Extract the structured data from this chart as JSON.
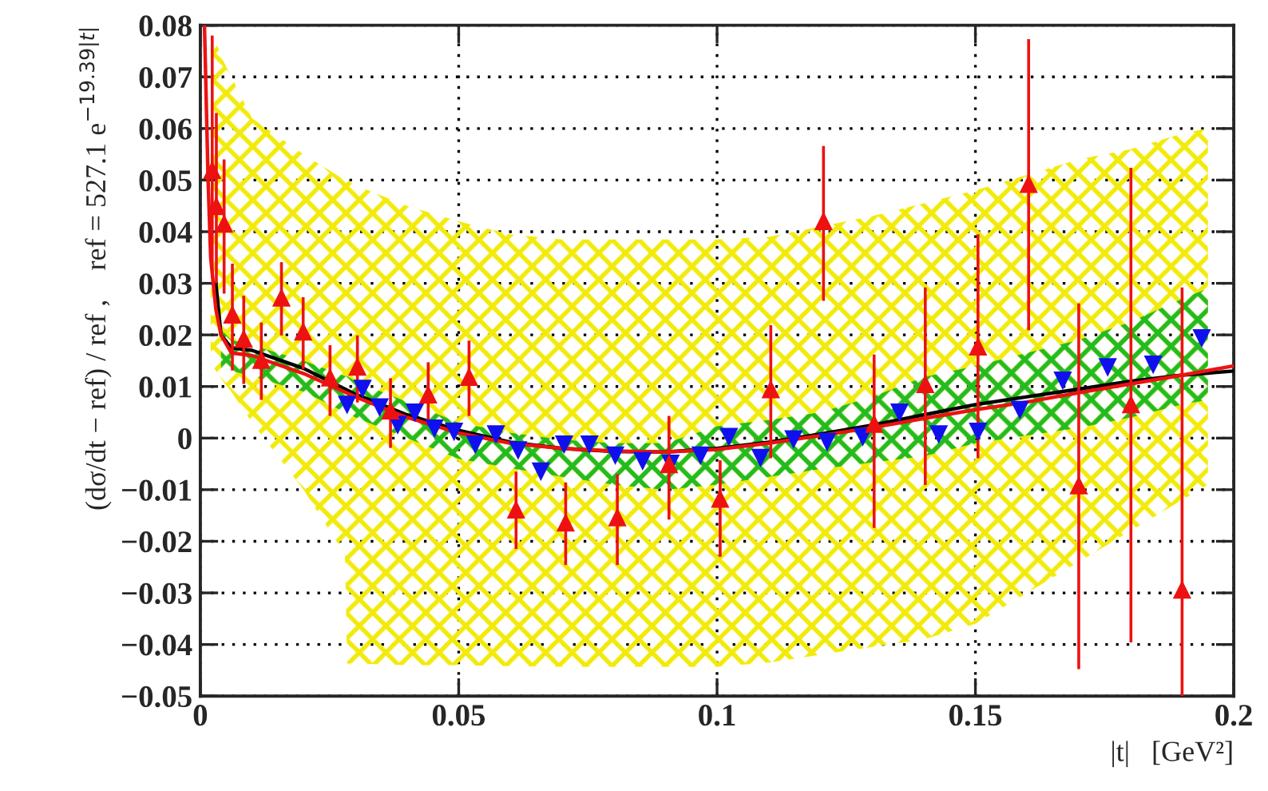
{
  "chart_data": {
    "type": "scatter",
    "xlabel": "|t|   [GeV²]",
    "ylabel": "(dσ/dt − ref) / ref ,    ref = 527.1 e$^{−19.39|t|}$",
    "xlim": [
      0,
      0.2
    ],
    "ylim": [
      -0.05,
      0.08
    ],
    "xticks": [
      0,
      0.05,
      0.1,
      0.15,
      0.2
    ],
    "yticks": [
      {
        "value": -0.05,
        "label": "−0.05"
      },
      {
        "value": -0.04,
        "label": "−0.04"
      },
      {
        "value": -0.03,
        "label": "−0.03"
      },
      {
        "value": -0.02,
        "label": "−0.02"
      },
      {
        "value": -0.01,
        "label": "−0.01"
      },
      0,
      0.01,
      0.02,
      0.03,
      0.04,
      0.05,
      0.06,
      0.07,
      0.08
    ],
    "grid": true,
    "legend": false,
    "series": [
      {
        "type": "line",
        "color": "#f2ea0a",
        "x": [
          0.002,
          0.003,
          0.004,
          0.006,
          0.01,
          0.02,
          0.028,
          0.0284,
          0.03,
          0.04,
          0.05,
          0.06,
          0.07,
          0.08,
          0.09,
          0.1,
          0.11,
          0.12,
          0.13,
          0.14,
          0.15,
          0.16,
          0.17,
          0.18,
          0.19,
          0.195
        ],
        "values": [
          null,
          null,
          null,
          null,
          null,
          null,
          null,
          null,
          null,
          null,
          null,
          null,
          null,
          null,
          null,
          null,
          null,
          null,
          null,
          null,
          null,
          null,
          null,
          null,
          null,
          null
        ],
        "lower": [
          0.0147,
          0.013,
          0.0115,
          0.009,
          0.003,
          -0.01,
          -0.0226,
          -0.0437,
          -0.0437,
          -0.044,
          -0.044,
          -0.0442,
          -0.0443,
          -0.0443,
          -0.0443,
          -0.0443,
          -0.0435,
          -0.042,
          -0.0405,
          -0.039,
          -0.036,
          -0.03,
          -0.024,
          -0.018,
          -0.012,
          -0.009
        ],
        "upper": [
          0.079,
          0.077,
          0.074,
          0.07,
          0.062,
          0.055,
          0.05,
          0.05,
          0.049,
          0.045,
          0.042,
          0.0395,
          0.0385,
          0.0385,
          0.0385,
          0.0385,
          0.039,
          0.041,
          0.043,
          0.0455,
          0.048,
          0.051,
          0.054,
          0.056,
          0.059,
          0.06
        ]
      },
      {
        "type": "line",
        "color": "#22bb22",
        "x": [
          0.004,
          0.006,
          0.01,
          0.02,
          0.028,
          0.0284,
          0.03,
          0.04,
          0.05,
          0.06,
          0.07,
          0.08,
          0.09,
          0.1,
          0.11,
          0.12,
          0.13,
          0.14,
          0.15,
          0.16,
          0.17,
          0.18,
          0.19,
          0.195
        ],
        "values": [
          null,
          null,
          null,
          null,
          null,
          null,
          null,
          null,
          null,
          null,
          null,
          null,
          null,
          null,
          null,
          null,
          null,
          null,
          null,
          null,
          null,
          null,
          null,
          null
        ],
        "lower": [
          0.013,
          0.013,
          0.012,
          0.009,
          0.005,
          0.005,
          0.004,
          0.0,
          -0.004,
          -0.0058,
          -0.0075,
          -0.009,
          -0.01,
          -0.009,
          -0.0075,
          -0.006,
          -0.0047,
          -0.0035,
          -0.001,
          0.0005,
          0.002,
          0.004,
          0.0065,
          0.0074
        ],
        "upper": [
          0.021,
          0.019,
          0.018,
          0.015,
          0.012,
          0.012,
          0.011,
          0.007,
          0.003,
          0.001,
          -0.0003,
          -0.001,
          -0.001,
          0.0023,
          0.0035,
          0.005,
          0.008,
          0.0118,
          0.014,
          0.0165,
          0.019,
          0.0225,
          0.027,
          0.029
        ]
      },
      {
        "type": "line",
        "color": "#000000",
        "marker": "none",
        "x": [
          0.003,
          0.004,
          0.006,
          0.01,
          0.02,
          0.028,
          0.03,
          0.04,
          0.05,
          0.06,
          0.07,
          0.08,
          0.09,
          0.1,
          0.11,
          0.12,
          0.13,
          0.14,
          0.15,
          0.16,
          0.17,
          0.18,
          0.19,
          0.195,
          0.2
        ],
        "values": [
          0.03,
          0.02,
          0.0175,
          0.017,
          0.0135,
          0.0095,
          0.0085,
          0.0045,
          0.0015,
          -0.0008,
          -0.002,
          -0.0026,
          -0.0027,
          -0.002,
          -0.0008,
          0.0008,
          0.0025,
          0.0045,
          0.0065,
          0.008,
          0.0095,
          0.011,
          0.0122,
          0.0126,
          0.013
        ]
      },
      {
        "type": "line",
        "color": "#ee1111",
        "marker": "none",
        "x": [
          0.0008,
          0.0015,
          0.002,
          0.003,
          0.004,
          0.006,
          0.01,
          0.02,
          0.028,
          0.03,
          0.04,
          0.05,
          0.06,
          0.07,
          0.08,
          0.09,
          0.1,
          0.11,
          0.12,
          0.13,
          0.14,
          0.15,
          0.16,
          0.17,
          0.18,
          0.19,
          0.195,
          0.2
        ],
        "values": [
          0.08,
          0.05,
          0.035,
          0.025,
          0.02,
          0.0165,
          0.016,
          0.0125,
          0.0089,
          0.008,
          0.004,
          0.001,
          -0.001,
          -0.002,
          -0.0025,
          -0.0027,
          -0.0022,
          -0.001,
          0.0005,
          0.002,
          0.0038,
          0.0055,
          0.007,
          0.0088,
          0.0105,
          0.0122,
          0.0131,
          0.014
        ]
      },
      {
        "color": "#1010ee",
        "marker": "triangle_down",
        "x": [
          0.0284,
          0.0314,
          0.0347,
          0.0382,
          0.0415,
          0.0453,
          0.0491,
          0.0532,
          0.0572,
          0.0615,
          0.0659,
          0.0704,
          0.0753,
          0.0803,
          0.0856,
          0.091,
          0.0968,
          0.1023,
          0.1084,
          0.1148,
          0.1213,
          0.1282,
          0.1353,
          0.1429,
          0.1505,
          0.1586,
          0.1669,
          0.1756,
          0.1844,
          0.1938
        ],
        "values": [
          0.0064,
          0.0095,
          0.0059,
          0.0025,
          0.0049,
          0.0018,
          0.0012,
          -0.0013,
          0.0007,
          -0.0024,
          -0.0065,
          -0.0013,
          -0.0013,
          -0.0034,
          -0.0045,
          -0.005,
          -0.0034,
          0.0002,
          -0.0039,
          -0.0003,
          -0.0008,
          0.0002,
          0.0049,
          0.0007,
          0.0012,
          0.0054,
          0.0111,
          0.0137,
          0.0142,
          0.0193
        ]
      },
      {
        "color": "#ee1111",
        "marker": "triangle",
        "x": [
          0.0023,
          0.0031,
          0.0046,
          0.0062,
          0.0084,
          0.0118,
          0.0157,
          0.0199,
          0.0251,
          0.0304,
          0.0368,
          0.0441,
          0.052,
          0.0611,
          0.0707,
          0.0807,
          0.0907,
          0.1006,
          0.1104,
          0.1206,
          0.1304,
          0.1403,
          0.1505,
          0.1603,
          0.17,
          0.1801,
          0.19
        ],
        "values": [
          0.052,
          0.045,
          0.0416,
          0.024,
          0.0193,
          0.0152,
          0.0273,
          0.0207,
          0.0118,
          0.0139,
          0.0054,
          0.0085,
          0.0119,
          -0.0138,
          -0.0163,
          -0.0153,
          -0.005,
          -0.0117,
          0.0095,
          0.0421,
          0.0028,
          0.0105,
          0.0178,
          0.0493,
          -0.0091,
          0.0066,
          -0.0293
        ],
        "errors": [
          [
            0.031,
            0.078
          ],
          [
            0.03,
            0.063
          ],
          [
            0.028,
            0.054
          ],
          [
            0.0131,
            0.0338
          ],
          [
            0.0105,
            0.0276
          ],
          [
            0.0074,
            0.0224
          ],
          [
            0.0199,
            0.0341
          ],
          [
            0.0134,
            0.0273
          ],
          [
            0.0043,
            0.018
          ],
          [
            0.0069,
            0.0199
          ],
          [
            -0.0019,
            0.0116
          ],
          [
            0.0023,
            0.0147
          ],
          [
            0.0043,
            0.0189
          ],
          [
            -0.0215,
            -0.0065
          ],
          [
            -0.0246,
            -0.0086
          ],
          [
            -0.0246,
            -0.007
          ],
          [
            -0.0158,
            0.0043
          ],
          [
            -0.023,
            -0.0043
          ],
          [
            -0.0039,
            0.0219
          ],
          [
            0.0266,
            0.0566
          ],
          [
            -0.0174,
            0.0162
          ],
          [
            -0.0091,
            0.0292
          ],
          [
            -0.0039,
            0.0395
          ],
          [
            0.0209,
            0.0773
          ],
          [
            -0.0448,
            0.0261
          ],
          [
            -0.0396,
            0.0524
          ],
          [
            -0.05,
            0.0292
          ]
        ]
      }
    ]
  }
}
